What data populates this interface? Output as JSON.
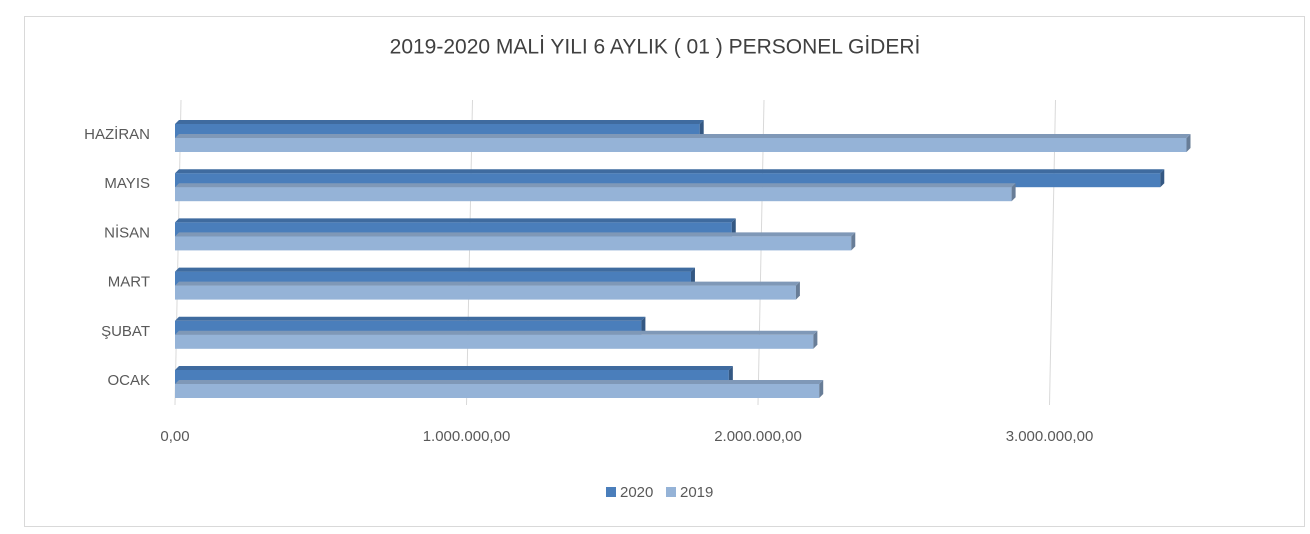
{
  "chart_data": {
    "type": "bar",
    "orientation": "horizontal",
    "title": "2019-2020 MALİ YILI 6 AYLIK ( 01 ) PERSONEL GİDERİ",
    "categories": [
      "OCAK",
      "ŞUBAT",
      "MART",
      "NİSAN",
      "MAYIS",
      "HAZİRAN"
    ],
    "series": [
      {
        "name": "2020",
        "color": "#4a7ebb",
        "values": [
          1900000,
          1600000,
          1770000,
          1910000,
          3380000,
          1800000
        ]
      },
      {
        "name": "2019",
        "color": "#95b3d7",
        "values": [
          2210000,
          2190000,
          2130000,
          2320000,
          2870000,
          3470000
        ]
      }
    ],
    "xlim": [
      0,
      3500000
    ],
    "xticks": [
      {
        "value": 0,
        "label": "0,00"
      },
      {
        "value": 1000000,
        "label": "1.000.000,00"
      },
      {
        "value": 2000000,
        "label": "2.000.000,00"
      },
      {
        "value": 3000000,
        "label": "3.000.000,00"
      }
    ],
    "grid": true,
    "legend": "bottom"
  }
}
